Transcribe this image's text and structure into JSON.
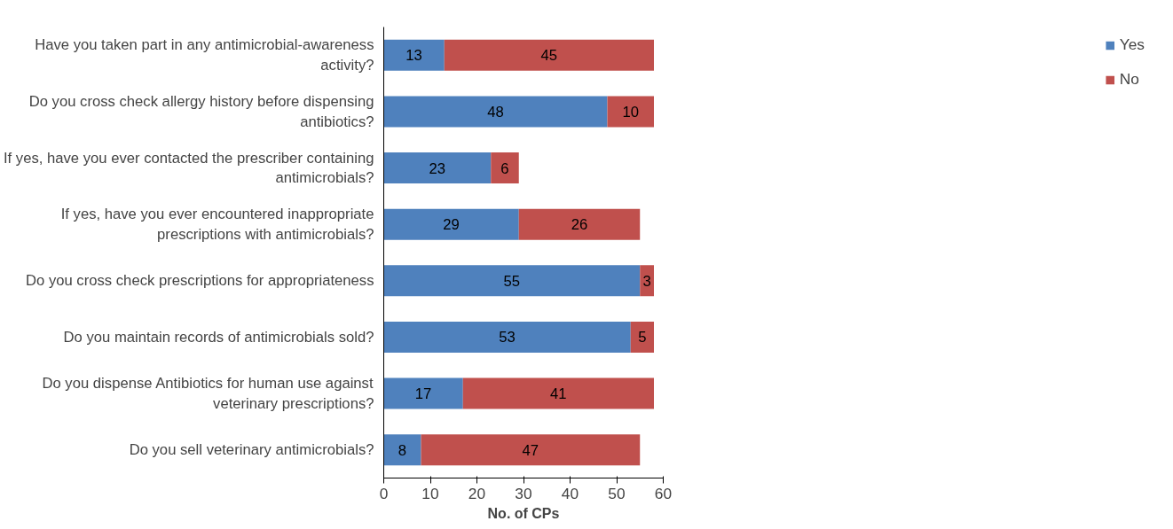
{
  "chart_data": {
    "type": "bar",
    "orientation": "horizontal",
    "stacked": true,
    "categories": [
      "Have you taken part in any antimicrobial-awareness\nactivity?",
      "Do you cross check allergy history before dispensing\nantibiotics?",
      "If yes, have you ever contacted the prescriber containing\nantimicrobials?",
      "If yes, have you ever encountered inappropriate\nprescriptions with antimicrobials?",
      "Do you cross check prescriptions for appropriateness",
      "Do you maintain records of antimicrobials sold?",
      "Do you dispense Antibiotics for human use against\nveterinary prescriptions?",
      "Do you sell veterinary antimicrobials?"
    ],
    "series": [
      {
        "name": "Yes",
        "color": "#4f81bd",
        "values": [
          13,
          48,
          23,
          29,
          55,
          53,
          17,
          8
        ]
      },
      {
        "name": "No",
        "color": "#c0504d",
        "values": [
          45,
          10,
          6,
          26,
          3,
          5,
          41,
          47
        ]
      }
    ],
    "xlabel": "No. of CPs",
    "xlim": [
      0,
      60
    ],
    "xticks": [
      0,
      10,
      20,
      30,
      40,
      50,
      60
    ],
    "data_labels": true,
    "legend": "right",
    "grid": false
  }
}
